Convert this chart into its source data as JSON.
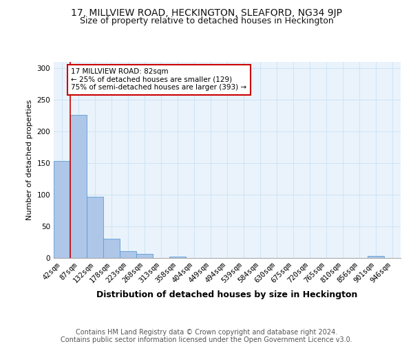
{
  "title1": "17, MILLVIEW ROAD, HECKINGTON, SLEAFORD, NG34 9JP",
  "title2": "Size of property relative to detached houses in Heckington",
  "xlabel": "Distribution of detached houses by size in Heckington",
  "ylabel": "Number of detached properties",
  "categories": [
    "42sqm",
    "87sqm",
    "132sqm",
    "178sqm",
    "223sqm",
    "268sqm",
    "313sqm",
    "358sqm",
    "404sqm",
    "449sqm",
    "494sqm",
    "539sqm",
    "584sqm",
    "630sqm",
    "675sqm",
    "720sqm",
    "765sqm",
    "810sqm",
    "856sqm",
    "901sqm",
    "946sqm"
  ],
  "values": [
    153,
    226,
    97,
    31,
    11,
    7,
    0,
    2,
    0,
    0,
    0,
    0,
    0,
    0,
    0,
    0,
    0,
    0,
    0,
    3,
    0
  ],
  "bar_color": "#aec6e8",
  "bar_edge_color": "#5a9fd4",
  "grid_color": "#d0e4f7",
  "background_color": "#eaf3fb",
  "annotation_line1": "17 MILLVIEW ROAD: 82sqm",
  "annotation_line2": "← 25% of detached houses are smaller (129)",
  "annotation_line3": "75% of semi-detached houses are larger (393) →",
  "annotation_box_color": "#ffffff",
  "annotation_box_edge_color": "#cc0000",
  "red_line_x": 0.5,
  "ylim": [
    0,
    310
  ],
  "yticks": [
    0,
    50,
    100,
    150,
    200,
    250,
    300
  ],
  "footer1": "Contains HM Land Registry data © Crown copyright and database right 2024.",
  "footer2": "Contains public sector information licensed under the Open Government Licence v3.0.",
  "title1_fontsize": 10,
  "title2_fontsize": 9,
  "xlabel_fontsize": 9,
  "ylabel_fontsize": 8,
  "tick_fontsize": 7.5,
  "annotation_fontsize": 7.5,
  "footer_fontsize": 7
}
